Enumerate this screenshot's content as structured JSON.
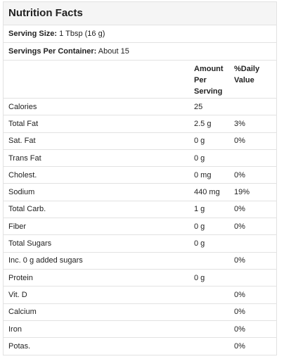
{
  "title": "Nutrition Facts",
  "serving_size": {
    "label": "Serving Size:",
    "value": "1 Tbsp (16 g)"
  },
  "servings_per_container": {
    "label": "Servings Per Container:",
    "value": "About 15"
  },
  "table": {
    "columns": [
      "Amount Per Serving",
      "%Daily Value"
    ],
    "rows": [
      {
        "nutrient": "Calories",
        "amount": "25"
      },
      {
        "nutrient": "Total Fat",
        "amount": "2.5 g",
        "daily_value": "3%"
      },
      {
        "nutrient": "Sat. Fat",
        "amount": "0 g",
        "daily_value": "0%"
      },
      {
        "nutrient": "Trans Fat",
        "amount": "0 g"
      },
      {
        "nutrient": "Cholest.",
        "amount": "0 mg",
        "daily_value": "0%"
      },
      {
        "nutrient": "Sodium",
        "amount": "440 mg",
        "daily_value": "19%"
      },
      {
        "nutrient": "Total Carb.",
        "amount": "1 g",
        "daily_value": "0%"
      },
      {
        "nutrient": "Fiber",
        "amount": "0 g",
        "daily_value": "0%"
      },
      {
        "nutrient": "Total Sugars",
        "amount": "0 g"
      },
      {
        "nutrient": "Inc. 0 g added sugars",
        "daily_value": "0%"
      },
      {
        "nutrient": "Protein",
        "amount": "0 g"
      },
      {
        "nutrient": "Vit. D",
        "daily_value": "0%"
      },
      {
        "nutrient": "Calcium",
        "daily_value": "0%"
      },
      {
        "nutrient": "Iron",
        "daily_value": "0%"
      },
      {
        "nutrient": "Potas.",
        "daily_value": "0%"
      }
    ]
  }
}
